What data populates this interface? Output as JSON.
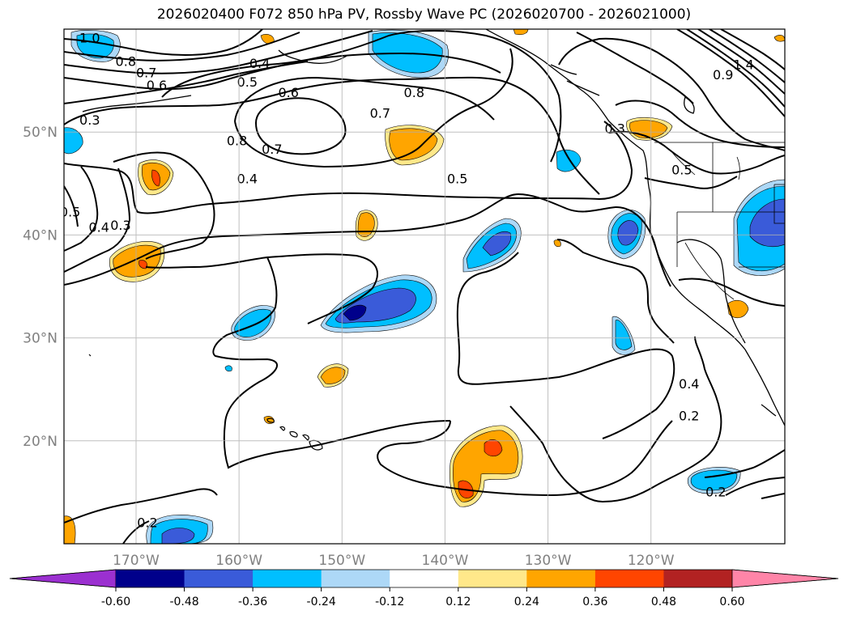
{
  "title": "2026020400 F072 850 hPa PV, Rossby Wave PC (2026020700 - 2026021000)",
  "map": {
    "projection": "lat-lon",
    "lon_range": [
      -177,
      -107
    ],
    "lat_range": [
      10,
      60
    ],
    "grid": true,
    "lat_ticks": [
      {
        "value": 20,
        "label": "20°N"
      },
      {
        "value": 30,
        "label": "30°N"
      },
      {
        "value": 40,
        "label": "40°N"
      },
      {
        "value": 50,
        "label": "50°N"
      }
    ],
    "lon_ticks": [
      {
        "value": -170,
        "label": "170°W"
      },
      {
        "value": -160,
        "label": "160°W"
      },
      {
        "value": -150,
        "label": "150°W"
      },
      {
        "value": -140,
        "label": "140°W"
      },
      {
        "value": -130,
        "label": "130°W"
      },
      {
        "value": -120,
        "label": "120°W"
      }
    ]
  },
  "pv_contour_labels": [
    {
      "text": "1.0",
      "lon": -174.5,
      "lat": 59.1
    },
    {
      "text": "0.8",
      "lon": -171.0,
      "lat": 56.8
    },
    {
      "text": "0.7",
      "lon": -169.0,
      "lat": 55.7
    },
    {
      "text": "0.6",
      "lon": -168.0,
      "lat": 54.5
    },
    {
      "text": "0.4",
      "lon": -158.0,
      "lat": 56.6
    },
    {
      "text": "0.5",
      "lon": -159.2,
      "lat": 54.8
    },
    {
      "text": "0.6",
      "lon": -155.2,
      "lat": 53.8
    },
    {
      "text": "0.8",
      "lon": -143.0,
      "lat": 53.8
    },
    {
      "text": "0.7",
      "lon": -146.3,
      "lat": 51.8
    },
    {
      "text": "0.8",
      "lon": -160.2,
      "lat": 49.1
    },
    {
      "text": "0.7",
      "lon": -156.8,
      "lat": 48.3
    },
    {
      "text": "0.4",
      "lon": -159.2,
      "lat": 45.4
    },
    {
      "text": "0.5",
      "lon": -138.8,
      "lat": 45.4
    },
    {
      "text": "0.3",
      "lon": -174.5,
      "lat": 51.1
    },
    {
      "text": "0.3",
      "lon": -123.5,
      "lat": 50.3
    },
    {
      "text": "0.5",
      "lon": -117.0,
      "lat": 46.3
    },
    {
      "text": "0.4",
      "lon": -173.6,
      "lat": 40.7
    },
    {
      "text": "0.3",
      "lon": -171.5,
      "lat": 40.9
    },
    {
      "text": "0.5",
      "lon": -176.4,
      "lat": 42.2
    },
    {
      "text": "0.4",
      "lon": -116.3,
      "lat": 25.5
    },
    {
      "text": "0.2",
      "lon": -116.3,
      "lat": 22.4
    },
    {
      "text": "0.2",
      "lon": -113.7,
      "lat": 15.0
    },
    {
      "text": "0.2",
      "lon": -168.9,
      "lat": 12.0
    },
    {
      "text": "1.4",
      "lon": -111.0,
      "lat": 56.5
    },
    {
      "text": "0.9",
      "lon": -113.0,
      "lat": 55.5
    }
  ],
  "colorbar": {
    "ticks": [
      "-0.60",
      "-0.48",
      "-0.36",
      "-0.24",
      "-0.12",
      "0.12",
      "0.24",
      "0.36",
      "0.48",
      "0.60"
    ],
    "colors": {
      "under": "#9b30d0",
      "bins": [
        "#00008b",
        "#3a5bd9",
        "#00bfff",
        "#add8f7",
        "#ffffff",
        "#ffe88a",
        "#ffa500",
        "#ff4500",
        "#b22222"
      ],
      "over": "#ff85a8"
    }
  }
}
